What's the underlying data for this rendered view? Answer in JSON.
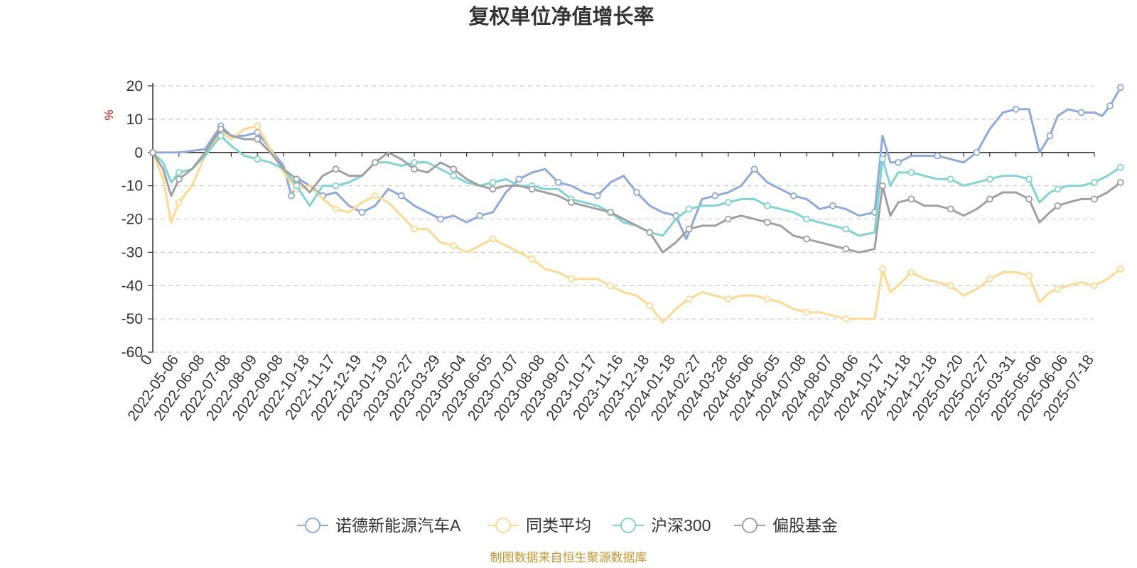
{
  "title": "复权单位净值增长率",
  "source": "制图数据来自恒生聚源数据库",
  "chart_data": {
    "type": "line",
    "title": "复权单位净值增长率",
    "ylabel": "%",
    "xlabel": "",
    "ylim": [
      -60,
      20
    ],
    "yticks": [
      20,
      10,
      0,
      -10,
      -20,
      -30,
      -40,
      -50,
      -60
    ],
    "x_tick_labels": [
      "0",
      "2022-05-06",
      "2022-06-08",
      "2022-07-08",
      "2022-08-09",
      "2022-09-08",
      "2022-10-18",
      "2022-11-17",
      "2022-12-19",
      "2023-01-19",
      "2023-02-27",
      "2023-03-29",
      "2023-05-04",
      "2023-06-05",
      "2023-07-07",
      "2023-08-08",
      "2023-09-07",
      "2023-10-17",
      "2023-11-16",
      "2023-12-18",
      "2024-01-18",
      "2024-02-27",
      "2024-03-28",
      "2024-05-06",
      "2024-06-05",
      "2024-07-08",
      "2024-08-07",
      "2024-09-06",
      "2024-10-17",
      "2024-11-18",
      "2024-12-18",
      "2025-01-20",
      "2025-02-27",
      "2025-03-31",
      "2025-05-06",
      "2025-06-06",
      "2025-07-18"
    ],
    "grid": "horizontal-dashed",
    "legend_position": "bottom",
    "series": [
      {
        "name": "诺德新能源汽车A",
        "color": "#8eaadc",
        "values": [
          [
            0,
            0
          ],
          [
            1,
            0
          ],
          [
            2,
            1
          ],
          [
            2.6,
            8
          ],
          [
            3,
            5
          ],
          [
            3.5,
            5
          ],
          [
            4,
            6
          ],
          [
            4.5,
            1
          ],
          [
            5,
            -4
          ],
          [
            5.3,
            -13
          ],
          [
            5.6,
            -8
          ],
          [
            6,
            -10
          ],
          [
            6.5,
            -13
          ],
          [
            7,
            -12
          ],
          [
            7.5,
            -16
          ],
          [
            8,
            -18
          ],
          [
            8.5,
            -16
          ],
          [
            9,
            -11
          ],
          [
            9.5,
            -13
          ],
          [
            10,
            -16
          ],
          [
            10.5,
            -18
          ],
          [
            11,
            -20
          ],
          [
            11.5,
            -19
          ],
          [
            12,
            -21
          ],
          [
            12.5,
            -19
          ],
          [
            13,
            -18
          ],
          [
            13.5,
            -12
          ],
          [
            14,
            -8
          ],
          [
            14.5,
            -6
          ],
          [
            15,
            -5
          ],
          [
            15.5,
            -9
          ],
          [
            16,
            -10
          ],
          [
            16.5,
            -12
          ],
          [
            17,
            -13
          ],
          [
            17.5,
            -9
          ],
          [
            18,
            -7
          ],
          [
            18.5,
            -12
          ],
          [
            19,
            -16
          ],
          [
            19.5,
            -18
          ],
          [
            20,
            -19
          ],
          [
            20.4,
            -26
          ],
          [
            21,
            -14
          ],
          [
            21.5,
            -13
          ],
          [
            22,
            -12
          ],
          [
            22.5,
            -10
          ],
          [
            23,
            -5
          ],
          [
            23.5,
            -9
          ],
          [
            24,
            -11
          ],
          [
            24.5,
            -13
          ],
          [
            25,
            -14
          ],
          [
            25.5,
            -17
          ],
          [
            26,
            -16
          ],
          [
            26.5,
            -17
          ],
          [
            27,
            -19
          ],
          [
            27.6,
            -18
          ],
          [
            27.9,
            5
          ],
          [
            28.2,
            -3
          ],
          [
            28.5,
            -3
          ],
          [
            29,
            -1
          ],
          [
            29.5,
            -1
          ],
          [
            30,
            -1
          ],
          [
            30.5,
            -2
          ],
          [
            31,
            -3
          ],
          [
            31.5,
            0
          ],
          [
            32,
            7
          ],
          [
            32.5,
            12
          ],
          [
            33,
            13
          ],
          [
            33.5,
            13
          ],
          [
            33.9,
            0
          ],
          [
            34.3,
            5
          ],
          [
            34.6,
            11
          ],
          [
            35,
            13
          ],
          [
            35.5,
            12
          ],
          [
            36,
            12
          ],
          [
            36.3,
            11
          ],
          [
            36.6,
            14
          ],
          [
            37,
            19.5
          ]
        ]
      },
      {
        "name": "同类平均",
        "color": "#ffd98e",
        "values": [
          [
            0,
            0
          ],
          [
            0.4,
            -8
          ],
          [
            0.7,
            -21
          ],
          [
            1,
            -15
          ],
          [
            1.5,
            -10
          ],
          [
            2,
            -1
          ],
          [
            2.6,
            6
          ],
          [
            3,
            4
          ],
          [
            3.5,
            7
          ],
          [
            4,
            8
          ],
          [
            4.5,
            1
          ],
          [
            5,
            -6
          ],
          [
            5.5,
            -11
          ],
          [
            6,
            -10
          ],
          [
            6.5,
            -14
          ],
          [
            7,
            -17
          ],
          [
            7.5,
            -18
          ],
          [
            8,
            -15
          ],
          [
            8.5,
            -13
          ],
          [
            9,
            -15
          ],
          [
            9.5,
            -19
          ],
          [
            10,
            -23
          ],
          [
            10.5,
            -23
          ],
          [
            11,
            -27
          ],
          [
            11.5,
            -28
          ],
          [
            12,
            -30
          ],
          [
            12.5,
            -28
          ],
          [
            13,
            -26
          ],
          [
            13.5,
            -28
          ],
          [
            14,
            -30
          ],
          [
            14.5,
            -32
          ],
          [
            15,
            -35
          ],
          [
            15.5,
            -36
          ],
          [
            16,
            -38
          ],
          [
            16.5,
            -38
          ],
          [
            17,
            -38
          ],
          [
            17.5,
            -40
          ],
          [
            18,
            -42
          ],
          [
            18.5,
            -43
          ],
          [
            19,
            -46
          ],
          [
            19.5,
            -51
          ],
          [
            20,
            -47
          ],
          [
            20.5,
            -44
          ],
          [
            21,
            -42
          ],
          [
            21.5,
            -43
          ],
          [
            22,
            -44
          ],
          [
            22.5,
            -43
          ],
          [
            23,
            -43
          ],
          [
            23.5,
            -44
          ],
          [
            24,
            -45
          ],
          [
            24.5,
            -47
          ],
          [
            25,
            -48
          ],
          [
            25.5,
            -48
          ],
          [
            26,
            -49
          ],
          [
            26.5,
            -50
          ],
          [
            27,
            -50
          ],
          [
            27.6,
            -50
          ],
          [
            27.9,
            -35
          ],
          [
            28.2,
            -42
          ],
          [
            28.5,
            -40
          ],
          [
            29,
            -36
          ],
          [
            29.5,
            -38
          ],
          [
            30,
            -39
          ],
          [
            30.5,
            -40
          ],
          [
            31,
            -43
          ],
          [
            31.5,
            -41
          ],
          [
            32,
            -38
          ],
          [
            32.5,
            -36
          ],
          [
            33,
            -36
          ],
          [
            33.5,
            -37
          ],
          [
            33.9,
            -45
          ],
          [
            34.3,
            -42
          ],
          [
            34.6,
            -41
          ],
          [
            35,
            -40
          ],
          [
            35.5,
            -39
          ],
          [
            36,
            -40
          ],
          [
            36.5,
            -38
          ],
          [
            37,
            -35
          ]
        ]
      },
      {
        "name": "沪深300",
        "color": "#7fd4d4",
        "values": [
          [
            0,
            0
          ],
          [
            0.4,
            -3
          ],
          [
            0.7,
            -9
          ],
          [
            1,
            -6
          ],
          [
            1.5,
            -5
          ],
          [
            2,
            -1
          ],
          [
            2.6,
            5
          ],
          [
            3,
            2
          ],
          [
            3.5,
            -1
          ],
          [
            4,
            -2
          ],
          [
            4.5,
            -3
          ],
          [
            5,
            -5
          ],
          [
            5.5,
            -10
          ],
          [
            6,
            -16
          ],
          [
            6.5,
            -10
          ],
          [
            7,
            -10
          ],
          [
            7.5,
            -9
          ],
          [
            8,
            -7
          ],
          [
            8.5,
            -3
          ],
          [
            9,
            -3
          ],
          [
            9.5,
            -4
          ],
          [
            10,
            -3
          ],
          [
            10.5,
            -3
          ],
          [
            11,
            -5
          ],
          [
            11.5,
            -7
          ],
          [
            12,
            -9
          ],
          [
            12.5,
            -10
          ],
          [
            13,
            -9
          ],
          [
            13.5,
            -8
          ],
          [
            14,
            -10
          ],
          [
            14.5,
            -10
          ],
          [
            15,
            -11
          ],
          [
            15.5,
            -11
          ],
          [
            16,
            -14
          ],
          [
            16.5,
            -15
          ],
          [
            17,
            -16
          ],
          [
            17.5,
            -18
          ],
          [
            18,
            -21
          ],
          [
            18.5,
            -22
          ],
          [
            19,
            -24
          ],
          [
            19.5,
            -25
          ],
          [
            20,
            -20
          ],
          [
            20.5,
            -17
          ],
          [
            21,
            -16
          ],
          [
            21.5,
            -16
          ],
          [
            22,
            -15
          ],
          [
            22.5,
            -14
          ],
          [
            23,
            -14
          ],
          [
            23.5,
            -16
          ],
          [
            24,
            -17
          ],
          [
            24.5,
            -18
          ],
          [
            25,
            -20
          ],
          [
            25.5,
            -21
          ],
          [
            26,
            -22
          ],
          [
            26.5,
            -23
          ],
          [
            27,
            -25
          ],
          [
            27.6,
            -24
          ],
          [
            27.9,
            -2
          ],
          [
            28.2,
            -10
          ],
          [
            28.5,
            -6
          ],
          [
            29,
            -6
          ],
          [
            29.5,
            -7
          ],
          [
            30,
            -8
          ],
          [
            30.5,
            -8
          ],
          [
            31,
            -10
          ],
          [
            31.5,
            -9
          ],
          [
            32,
            -8
          ],
          [
            32.5,
            -7
          ],
          [
            33,
            -7
          ],
          [
            33.5,
            -8
          ],
          [
            33.9,
            -15
          ],
          [
            34.3,
            -12
          ],
          [
            34.6,
            -11
          ],
          [
            35,
            -10
          ],
          [
            35.5,
            -10
          ],
          [
            36,
            -9
          ],
          [
            36.5,
            -7
          ],
          [
            37,
            -4.5
          ]
        ]
      },
      {
        "name": "偏股基金",
        "color": "#a0a0a0",
        "values": [
          [
            0,
            0
          ],
          [
            0.4,
            -5
          ],
          [
            0.7,
            -13
          ],
          [
            1,
            -8
          ],
          [
            1.5,
            -5
          ],
          [
            2,
            0
          ],
          [
            2.6,
            7
          ],
          [
            3,
            5
          ],
          [
            3.5,
            4
          ],
          [
            4,
            4
          ],
          [
            4.5,
            0
          ],
          [
            5,
            -5
          ],
          [
            5.5,
            -8
          ],
          [
            6,
            -12
          ],
          [
            6.5,
            -7
          ],
          [
            7,
            -5
          ],
          [
            7.5,
            -7
          ],
          [
            8,
            -7
          ],
          [
            8.5,
            -3
          ],
          [
            9,
            0
          ],
          [
            9.5,
            -2
          ],
          [
            10,
            -5
          ],
          [
            10.5,
            -6
          ],
          [
            11,
            -3
          ],
          [
            11.5,
            -5
          ],
          [
            12,
            -8
          ],
          [
            12.5,
            -10
          ],
          [
            13,
            -11
          ],
          [
            13.5,
            -10
          ],
          [
            14,
            -10
          ],
          [
            14.5,
            -11
          ],
          [
            15,
            -12
          ],
          [
            15.5,
            -13
          ],
          [
            16,
            -15
          ],
          [
            16.5,
            -16
          ],
          [
            17,
            -17
          ],
          [
            17.5,
            -18
          ],
          [
            18,
            -20
          ],
          [
            18.5,
            -22
          ],
          [
            19,
            -24
          ],
          [
            19.5,
            -30
          ],
          [
            20,
            -27
          ],
          [
            20.5,
            -23
          ],
          [
            21,
            -22
          ],
          [
            21.5,
            -22
          ],
          [
            22,
            -20
          ],
          [
            22.5,
            -19
          ],
          [
            23,
            -20
          ],
          [
            23.5,
            -21
          ],
          [
            24,
            -22
          ],
          [
            24.5,
            -25
          ],
          [
            25,
            -26
          ],
          [
            25.5,
            -27
          ],
          [
            26,
            -28
          ],
          [
            26.5,
            -29
          ],
          [
            27,
            -30
          ],
          [
            27.6,
            -29
          ],
          [
            27.9,
            -10
          ],
          [
            28.2,
            -19
          ],
          [
            28.5,
            -15
          ],
          [
            29,
            -14
          ],
          [
            29.5,
            -16
          ],
          [
            30,
            -16
          ],
          [
            30.5,
            -17
          ],
          [
            31,
            -19
          ],
          [
            31.5,
            -17
          ],
          [
            32,
            -14
          ],
          [
            32.5,
            -12
          ],
          [
            33,
            -12
          ],
          [
            33.5,
            -14
          ],
          [
            33.9,
            -21
          ],
          [
            34.3,
            -18
          ],
          [
            34.6,
            -16
          ],
          [
            35,
            -15
          ],
          [
            35.5,
            -14
          ],
          [
            36,
            -14
          ],
          [
            36.5,
            -12
          ],
          [
            37,
            -9
          ]
        ]
      }
    ]
  }
}
